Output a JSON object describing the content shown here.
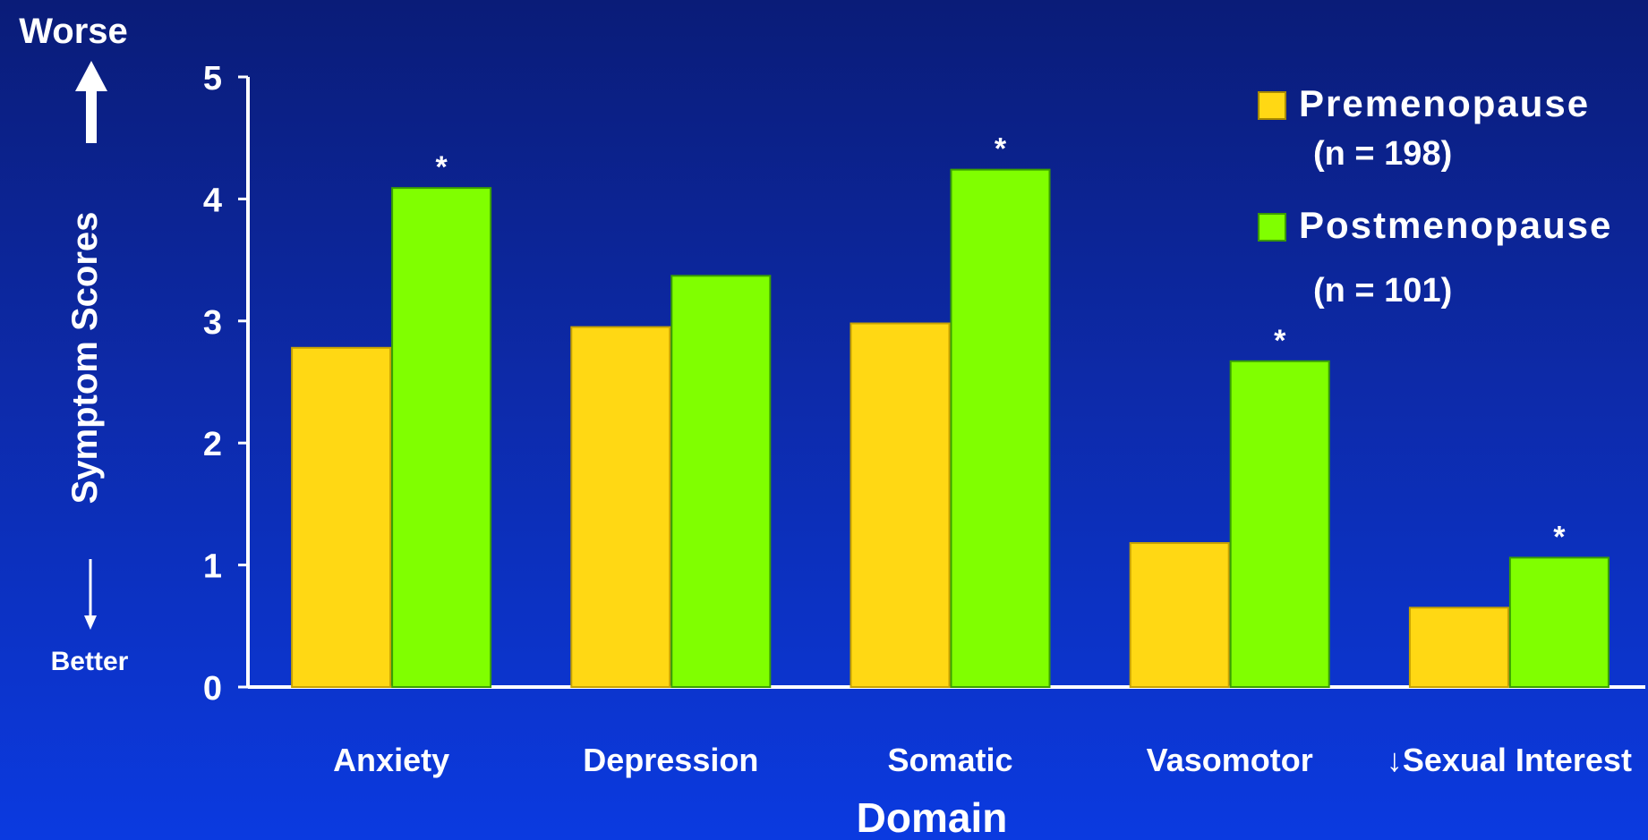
{
  "chart_data": {
    "type": "bar",
    "xlabel": "Domain",
    "ylabel": "Symptom Scores",
    "y_top_label": "Worse",
    "y_bottom_label": "Better",
    "ylim": [
      0,
      5
    ],
    "yticks": [
      "0",
      "1",
      "2",
      "3",
      "4",
      "5"
    ],
    "grid": false,
    "legend_position": "top-right",
    "categories": [
      "Anxiety",
      "Depression",
      "Somatic",
      "Vasomotor",
      "↓Sexual Interest"
    ],
    "series": [
      {
        "name": "Premenopause",
        "name_sub": "(n = 198)",
        "color": "#ffd814",
        "values": [
          2.78,
          2.95,
          2.98,
          1.18,
          0.65
        ]
      },
      {
        "name": "Postmenopause",
        "name_sub": "(n = 101)",
        "color": "#80ff00",
        "values": [
          4.09,
          3.37,
          4.24,
          2.67,
          1.06
        ]
      }
    ],
    "significance_marker": "*",
    "significant": [
      true,
      false,
      true,
      true,
      true
    ]
  }
}
